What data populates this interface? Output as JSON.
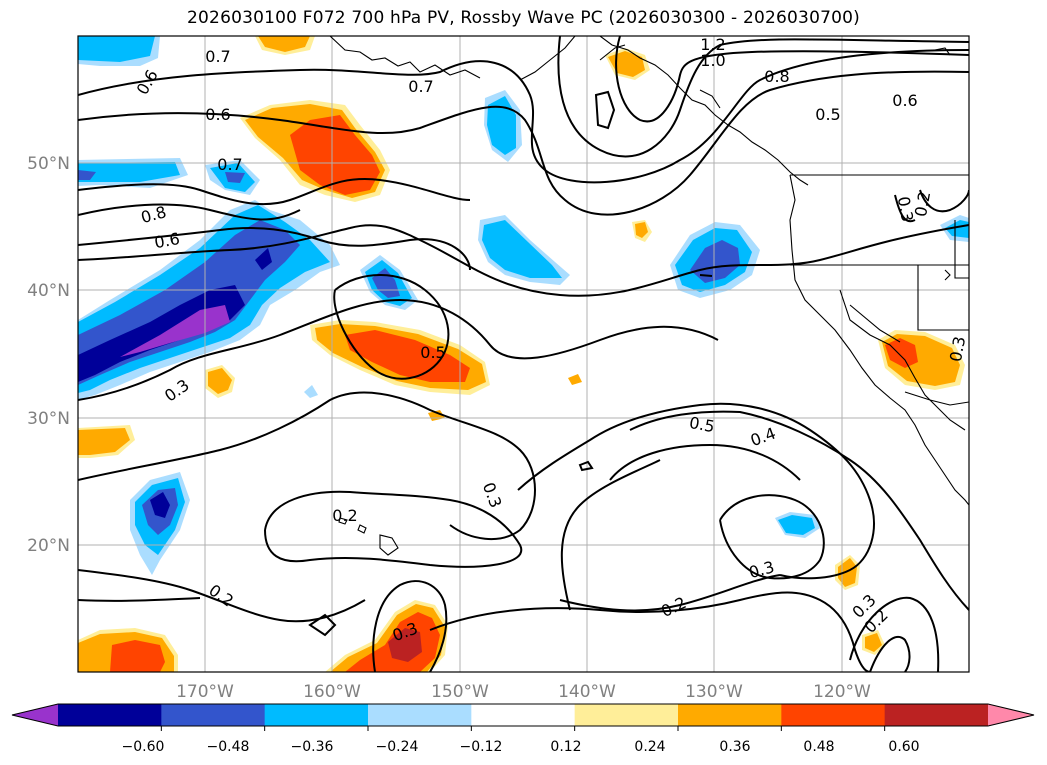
{
  "title": "2026030100 F072 700 hPa PV, Rossby Wave PC (2026030300 - 2026030700)",
  "map": {
    "lat_labels": [
      "50°N",
      "40°N",
      "30°N",
      "20°N"
    ],
    "lon_labels": [
      "170°W",
      "160°W",
      "150°W",
      "140°W",
      "130°W",
      "120°W"
    ],
    "contour_labels": [
      "0.7",
      "1.2",
      "1.0",
      "0.6",
      "0.7",
      "0.8",
      "0.5",
      "0.6",
      "0.6",
      "0.7",
      "0.8",
      "0.6",
      "0.2",
      "0.3",
      "0.5",
      "0.3",
      "0.5",
      "0.4",
      "0.3",
      "0.2",
      "0.2",
      "0.3",
      "0.3",
      "0.2",
      "0.3",
      "0.2",
      "0.3"
    ]
  },
  "colorbar": {
    "tick_labels": [
      "−0.60",
      "−0.48",
      "−0.36",
      "−0.24",
      "−0.12",
      "0.12",
      "0.24",
      "0.36",
      "0.48",
      "0.60"
    ],
    "colors": [
      "#9933cc",
      "#000099",
      "#3355cc",
      "#00bbff",
      "#aaddff",
      "#ffffff",
      "#ffee99",
      "#ffaa00",
      "#ff4400",
      "#bb2222",
      "#ff88aa"
    ]
  }
}
